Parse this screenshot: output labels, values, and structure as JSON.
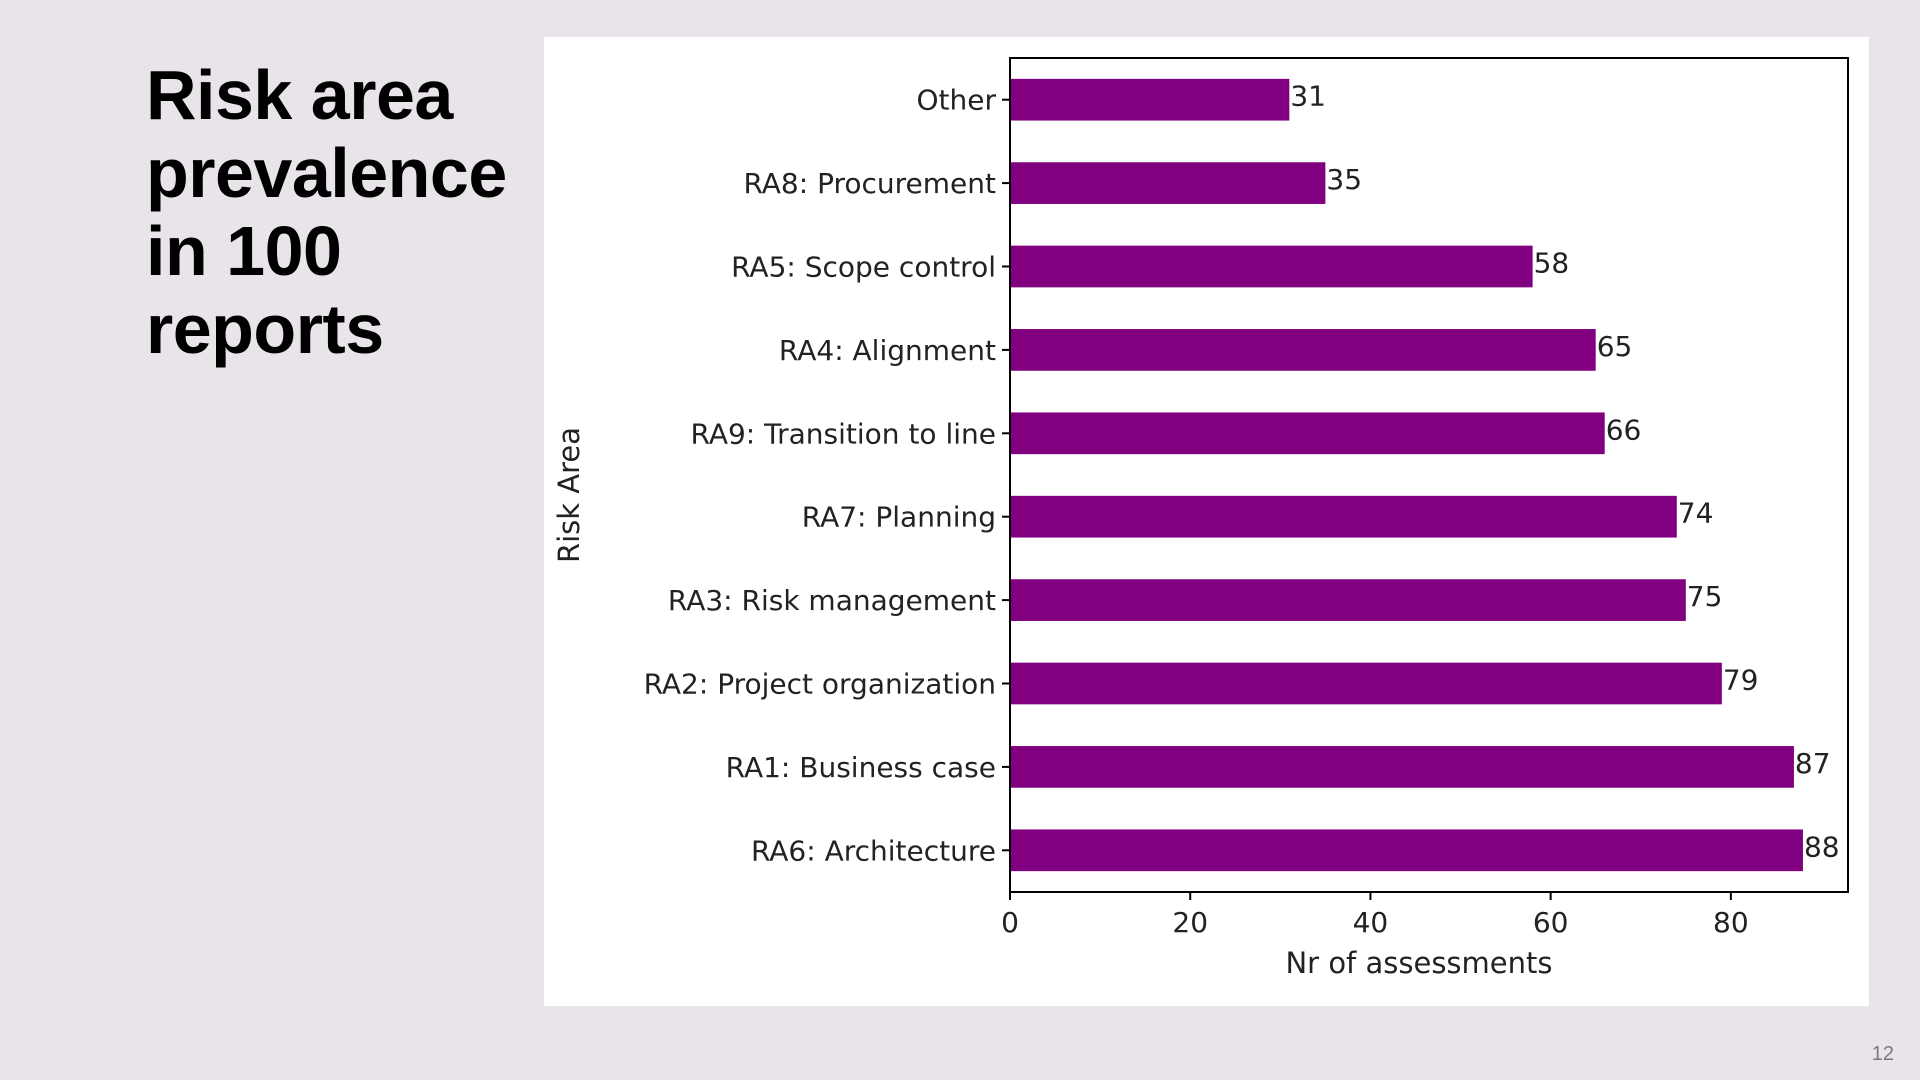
{
  "slide": {
    "title_lines": [
      "Risk area",
      "prevalence",
      "in 100",
      "reports"
    ],
    "page_number": "12"
  },
  "chart_data": {
    "type": "bar",
    "orientation": "horizontal",
    "title": "",
    "xlabel": "Nr of assessments",
    "ylabel": "Risk Area",
    "xlim": [
      0,
      93
    ],
    "xticks": [
      0,
      20,
      40,
      60,
      80
    ],
    "grid": false,
    "bar_color": "#800080",
    "categories": [
      "Other",
      "RA8: Procurement",
      "RA5: Scope control",
      "RA4: Alignment",
      "RA9: Transition to line",
      "RA7: Planning",
      "RA3: Risk management",
      "RA2: Project organization",
      "RA1: Business case",
      "RA6: Architecture"
    ],
    "values": [
      31,
      35,
      58,
      65,
      66,
      74,
      75,
      79,
      87,
      88
    ],
    "data_labels": [
      "31",
      "35",
      "58",
      "65",
      "66",
      "74",
      "75",
      "79",
      "87",
      "88"
    ]
  }
}
